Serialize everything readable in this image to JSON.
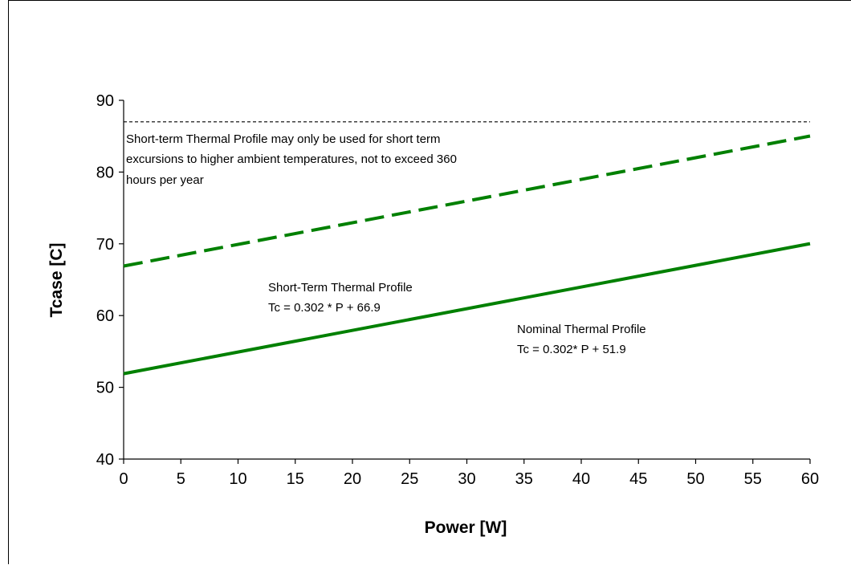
{
  "chart_data": {
    "type": "line",
    "xlabel": "Power [W]",
    "ylabel": "Tcase [C]",
    "xlim": [
      0,
      60
    ],
    "ylim": [
      40,
      90
    ],
    "x_ticks": [
      0,
      5,
      10,
      15,
      20,
      25,
      30,
      35,
      40,
      45,
      50,
      55,
      60
    ],
    "y_ticks": [
      40,
      50,
      60,
      70,
      80,
      90
    ],
    "grid": false,
    "legend": "none",
    "series": [
      {
        "key": "short_term",
        "style": "dashed",
        "color": "#008000",
        "x": [
          0,
          60
        ],
        "y": [
          66.9,
          85.02
        ]
      },
      {
        "key": "nominal",
        "style": "solid",
        "color": "#008000",
        "x": [
          0,
          60
        ],
        "y": [
          51.9,
          70.02
        ]
      }
    ],
    "reference_line": {
      "y": 87,
      "style": "dotted",
      "color": "#000000"
    },
    "annotations": {
      "note": [
        "Short-term Thermal Profile may only be used for short term",
        "excursions to higher ambient temperatures, not to exceed 360",
        "hours per year"
      ],
      "short_term_label": [
        "Short-Term Thermal Profile",
        "Tc = 0.302 * P + 66.9"
      ],
      "nominal_label": [
        "Nominal Thermal Profile",
        "Tc = 0.302* P + 51.9"
      ]
    }
  }
}
